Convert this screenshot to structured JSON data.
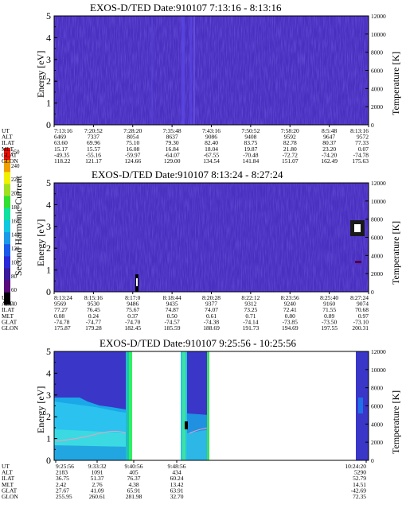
{
  "colorbar": {
    "label": "Second Harmonic Current",
    "ticks": [
      "40",
      "60",
      "80",
      "100",
      "120",
      "140",
      "160",
      "180",
      "200",
      "220",
      "240",
      "250"
    ],
    "colors": [
      "#000000",
      "#5a0a7a",
      "#3a1a9a",
      "#2a2ad8",
      "#1a5ae8",
      "#1a9ae8",
      "#10c8e0",
      "#10e0a0",
      "#30e030",
      "#a0e020",
      "#f0f000",
      "#f0a000",
      "#f01000"
    ]
  },
  "chart_data": [
    {
      "type": "heatmap",
      "title": "EXOS-D/TED   Date:910107  7:13:16 - 8:13:16",
      "ylabel": "Energy [eV]",
      "y2label": "Temperature [K]",
      "ylim": [
        0,
        5
      ],
      "y2lim": [
        0,
        12000
      ],
      "yticks": [
        "0",
        "1",
        "2",
        "3",
        "4",
        "5"
      ],
      "y2ticks": [
        "0",
        "2000",
        "4000",
        "6000",
        "8000",
        "10000",
        "12000"
      ],
      "background": "#4a30c0",
      "orbit_table": {
        "rows": [
          "UT",
          "ALT",
          "ILAT",
          "MLT",
          "GLAT",
          "GLON"
        ],
        "columns": [
          [
            "7:13:16",
            "6469",
            "63.60",
            "15.17",
            "-49.35",
            "118.22"
          ],
          [
            "7:20:52",
            "7337",
            "69.96",
            "15.57",
            "-55.16",
            "121.17"
          ],
          [
            "7:28:20",
            "8054",
            "75.10",
            "16.08",
            "-59.97",
            "124.66"
          ],
          [
            "7:35:48",
            "8637",
            "79.30",
            "16.84",
            "-64.07",
            "129.00"
          ],
          [
            "7:43:16",
            "9086",
            "82.40",
            "18.04",
            "-67.55",
            "134.54"
          ],
          [
            "7:50:52",
            "9408",
            "83.75",
            "19.87",
            "-70.48",
            "141.84"
          ],
          [
            "7:58:20",
            "9592",
            "82.78",
            "21.80",
            "-72.72",
            "151.07"
          ],
          [
            "8:5:48",
            "9647",
            "80.37",
            "23.20",
            "-74.20",
            "162.49"
          ],
          [
            "8:13:16",
            "9572",
            "77.33",
            "0.07",
            "-74.78",
            "175.63"
          ]
        ]
      }
    },
    {
      "type": "heatmap",
      "title": "EXOS-D/TED   Date:910107  8:13:24 - 8:27:24",
      "ylabel": "Energy [eV]",
      "y2label": "Temperature [K]",
      "ylim": [
        0,
        5
      ],
      "y2lim": [
        0,
        12000
      ],
      "yticks": [
        "0",
        "1",
        "2",
        "3",
        "4",
        "5"
      ],
      "y2ticks": [
        "0",
        "2000",
        "4000",
        "6000",
        "8000",
        "10000",
        "12000"
      ],
      "background": "#4a30c0",
      "orbit_table": {
        "rows": [
          "UT",
          "ALT",
          "ILAT",
          "MLT",
          "GLAT",
          "GLON"
        ],
        "columns": [
          [
            "8:13:24",
            "9569",
            "77.27",
            "0.08",
            "-74.78",
            "175.87"
          ],
          [
            "8:15:16",
            "9530",
            "76.45",
            "0.24",
            "-74.77",
            "179.28"
          ],
          [
            "8:17:0",
            "9486",
            "75.67",
            "0.37",
            "-74.70",
            "182.45"
          ],
          [
            "8:18:44",
            "9435",
            "74.87",
            "0.50",
            "-74.57",
            "185.59"
          ],
          [
            "8:20:28",
            "9377",
            "74.07",
            "0.61",
            "-74.38",
            "188.69"
          ],
          [
            "8:22:12",
            "9312",
            "73.25",
            "0.71",
            "-74.14",
            "191.73"
          ],
          [
            "8:23:56",
            "9240",
            "72.41",
            "0.80",
            "-73.85",
            "194.69"
          ],
          [
            "8:25:40",
            "9160",
            "71.55",
            "0.89",
            "-73.50",
            "197.55"
          ],
          [
            "8:27:24",
            "9074",
            "70.68",
            "0.97",
            "-73.10",
            "200.31"
          ]
        ]
      }
    },
    {
      "type": "heatmap",
      "title": "EXOS-D/TED   Date:910107  9:25:56 - 10:25:56",
      "ylabel": "Energy [eV]",
      "y2label": "Temperature [K]",
      "ylim": [
        0,
        5
      ],
      "y2lim": [
        0,
        12000
      ],
      "yticks": [
        "0",
        "1",
        "2",
        "3",
        "4",
        "5"
      ],
      "y2ticks": [
        "0",
        "2000",
        "4000",
        "6000",
        "8000",
        "10000",
        "12000"
      ],
      "background": "#4a30c0",
      "orbit_table": {
        "rows": [
          "UT",
          "ALT",
          "ILAT",
          "MLT",
          "GLAT",
          "GLON"
        ],
        "columns": [
          [
            "9:25:56",
            "2183",
            "36.75",
            "2.42",
            "27.67",
            "255.95"
          ],
          [
            "9:33:32",
            "1091",
            "51.37",
            "2.76",
            "41.09",
            "260.61"
          ],
          [
            "9:40:56",
            "405",
            "76.37",
            "4.38",
            "65.91",
            "281.98"
          ],
          [
            "9:48:56",
            "434",
            "60.24",
            "13.42",
            "63.91",
            "32.70"
          ],
          [
            "10:24:20",
            "5290",
            "52.79",
            "14.51",
            "-42.69",
            "72.35"
          ]
        ]
      }
    }
  ]
}
